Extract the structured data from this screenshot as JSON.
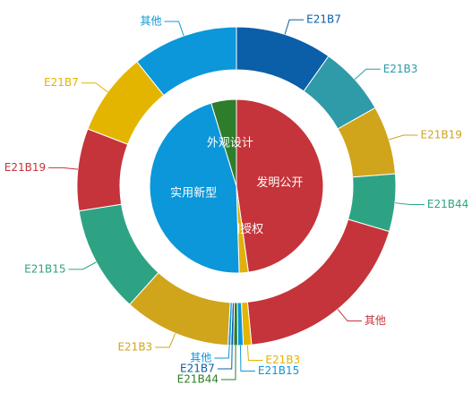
{
  "chart_data": {
    "type": "pie",
    "inner": {
      "labels": [
        "发明公开",
        "发明授权",
        "实用新型",
        "外观设计"
      ],
      "values": [
        47.8,
        1.7,
        45.8,
        4.7
      ],
      "colors": [
        "#c4343a",
        "#e0b010",
        "#0b97d9",
        "#2e7d2a"
      ]
    },
    "outer": {
      "labels": [
        "E21B7",
        "E21B3",
        "E21B19",
        "E21B44",
        "其他",
        "E21B3",
        "E21B15",
        "E21B44",
        "E21B7",
        "其他",
        "E21B3",
        "E21B15",
        "E21B19",
        "E21B7",
        "其他"
      ],
      "values": [
        35.3,
        25.2,
        25,
        21,
        68,
        3,
        2,
        1.5,
        1,
        1,
        39,
        39,
        30,
        30.3,
        38.6
      ],
      "colors": [
        "#0b5ea8",
        "#2f9aa8",
        "#d0a51c",
        "#2ea384",
        "#c4343a",
        "#e4b500",
        "#0b97d9",
        "#2e7d2a",
        "#0b5ea8",
        "#0b97d9",
        "#d0a51c",
        "#2ea384",
        "#c4343a",
        "#e4b500",
        "#0b97d9"
      ]
    }
  }
}
